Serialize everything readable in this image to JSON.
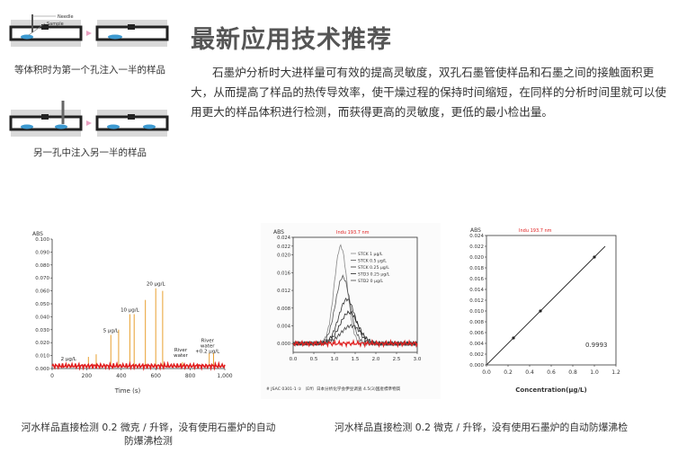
{
  "heading": "最新应用技术推荐",
  "paragraph": "石墨炉分析时大进样量可有效的提高灵敏度，双孔石墨管使样品和石墨之间的接触面积更大，从而提高了样品的热传导效率，使干燥过程的保持时间缩短，在同样的分析时间里就可以使用更大的样品体积进行检测，而获得更高的灵敏度，更低的最小检出量。",
  "diagram1": {
    "caption": "等体积时为第一个孔注入一半的样品",
    "label_needle": "Needle",
    "label_sample": "Sample"
  },
  "diagram2": {
    "caption": "另一孔中注入另一半的样品"
  },
  "figure_captions": {
    "left": "河水样品直接检测 0.2 微克 / 升铧，没有使用石墨炉的自动防爆沸检测",
    "right": "河水样品直接检测 0.2 微克 / 升铧，没有使用石墨炉的自动防爆沸检"
  },
  "chart_data": [
    {
      "type": "line",
      "ylabel": "ABS",
      "xlabel": "Time (s)",
      "ylim": [
        0,
        0.1
      ],
      "xlim": [
        0,
        1000
      ],
      "yticks": [
        "0.100",
        "0.090",
        "0.080",
        "0.070",
        "0.060",
        "0.050",
        "0.040",
        "0.030",
        "0.020",
        "0.010",
        "0.000"
      ],
      "xticks": [
        "0",
        "200",
        "400",
        "600",
        "800",
        "1,000"
      ],
      "peaks": [
        {
          "x": 95,
          "y": 0.004,
          "label": "2 μg/L"
        },
        {
          "x": 210,
          "y": 0.009,
          "label": ""
        },
        {
          "x": 255,
          "y": 0.011,
          "label": ""
        },
        {
          "x": 340,
          "y": 0.026,
          "label": "5 μg/L"
        },
        {
          "x": 385,
          "y": 0.03,
          "label": ""
        },
        {
          "x": 450,
          "y": 0.042,
          "label": "10 μg/L"
        },
        {
          "x": 475,
          "y": 0.042,
          "label": ""
        },
        {
          "x": 540,
          "y": 0.053,
          "label": ""
        },
        {
          "x": 600,
          "y": 0.062,
          "label": "20 μg/L"
        },
        {
          "x": 640,
          "y": 0.06,
          "label": ""
        },
        {
          "x": 755,
          "y": 0.005,
          "label": "River water"
        },
        {
          "x": 910,
          "y": 0.012,
          "label": "River water +0.2 μg/L"
        },
        {
          "x": 935,
          "y": 0.012,
          "label": ""
        }
      ]
    },
    {
      "type": "line",
      "ylabel": "ABS",
      "annotation": "Indu 193.7 nm",
      "ylim": [
        -0.002,
        0.024
      ],
      "xlim": [
        0,
        3
      ],
      "yticks": [
        "0.024",
        "0.022",
        "0.020",
        "0.016",
        "0.012",
        "0.008",
        "0.004",
        "0.000"
      ],
      "xticks": [
        "0.0",
        "0.5",
        "1.0",
        "1.5",
        "2.0",
        "2.5",
        "3.0"
      ],
      "legend": [
        "STCK 1 μg/L",
        "STCK 0.5 μg/L",
        "STCK 0.25 μg/L",
        "STD3 0.25 μg/L",
        "STD2 0 μg/L"
      ],
      "series": [
        {
          "name": "STCK 1 μg/L",
          "peak_x": 1.15,
          "peak_y": 0.022
        },
        {
          "name": "STCK 0.5 μg/L",
          "peak_x": 1.2,
          "peak_y": 0.015
        },
        {
          "name": "STCK 0.25 μg/L",
          "peak_x": 1.3,
          "peak_y": 0.01
        },
        {
          "name": "STD3 0.25 μg/L",
          "peak_x": 1.35,
          "peak_y": 0.007
        },
        {
          "name": "STD2 0 μg/L",
          "peak_x": 1.4,
          "peak_y": 0.004
        }
      ],
      "footnote": "# JSAC 0301-1    ① （Eff）日本分析化学会伊豆调査 4.5(3)国産標準物質"
    },
    {
      "type": "scatter",
      "ylabel": "ABS",
      "xlabel": "Concentration(μg/L)",
      "annotation": "Indu 193.7 nm",
      "ylim": [
        0,
        0.024
      ],
      "xlim": [
        0,
        1.2
      ],
      "yticks": [
        "0.024",
        "0.020",
        "0.016",
        "0.012",
        "0.008",
        "0.004",
        "0.000"
      ],
      "ytick_extra": [
        "0.022",
        "0.018",
        "0.014",
        "0.010",
        "0.006",
        "0.002"
      ],
      "xticks": [
        "0.0",
        "0.2",
        "0.4",
        "0.6",
        "0.8",
        "1.0",
        "1.2"
      ],
      "x": [
        0.25,
        0.5,
        1.0
      ],
      "y": [
        0.005,
        0.01,
        0.02
      ],
      "r_value": "0.9993"
    }
  ]
}
